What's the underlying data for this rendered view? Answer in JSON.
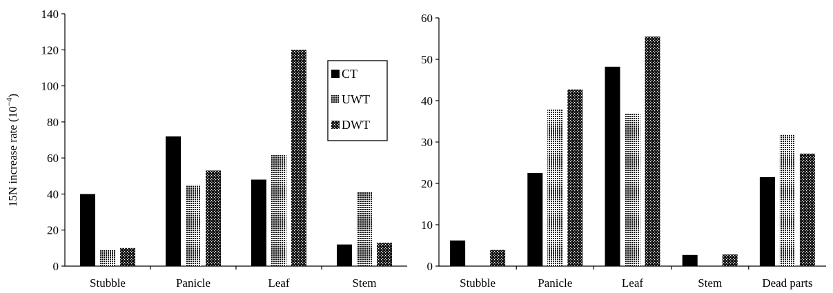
{
  "chart_data": [
    {
      "type": "bar",
      "title": "",
      "xlabel": "",
      "ylabel": "15N  increase rate (10",
      "ylabel_sup": "−4",
      "ylabel_close": ")",
      "ylim": [
        0,
        140
      ],
      "yticks": [
        "0",
        "20",
        "40",
        "60",
        "80",
        "100",
        "120",
        "140"
      ],
      "categories": [
        "Stubble",
        "Panicle",
        "Leaf",
        "Stem"
      ],
      "series": [
        {
          "name": "CT",
          "values": [
            40,
            72,
            48,
            12
          ],
          "pattern": "solid"
        },
        {
          "name": "UWT",
          "values": [
            9,
            45,
            62,
            41
          ],
          "pattern": "dots"
        },
        {
          "name": "DWT",
          "values": [
            10,
            53,
            120,
            13
          ],
          "pattern": "checker"
        }
      ],
      "legend_placement": "top-right",
      "grid": false
    },
    {
      "type": "bar",
      "title": "",
      "xlabel": "",
      "ylabel": "",
      "ylim": [
        0,
        60
      ],
      "yticks": [
        "0",
        "10",
        "20",
        "30",
        "40",
        "50",
        "60"
      ],
      "categories": [
        "Stubble",
        "Panicle",
        "Leaf",
        "Stem",
        "Dead parts"
      ],
      "series": [
        {
          "name": "CT",
          "values": [
            6.2,
            22.5,
            48.2,
            2.7,
            21.5
          ],
          "pattern": "solid"
        },
        {
          "name": "UWT",
          "values": [
            0,
            38,
            37,
            0,
            31.7
          ],
          "pattern": "dots"
        },
        {
          "name": "DWT",
          "values": [
            3.9,
            42.7,
            55.5,
            2.8,
            27.2
          ],
          "pattern": "checker"
        }
      ],
      "grid": false
    }
  ],
  "legend": {
    "items": [
      {
        "symbol": "■",
        "label": "CT"
      },
      {
        "symbol": "⁂",
        "label": "UWT"
      },
      {
        "symbol": "▩",
        "label": "DWT"
      }
    ]
  }
}
